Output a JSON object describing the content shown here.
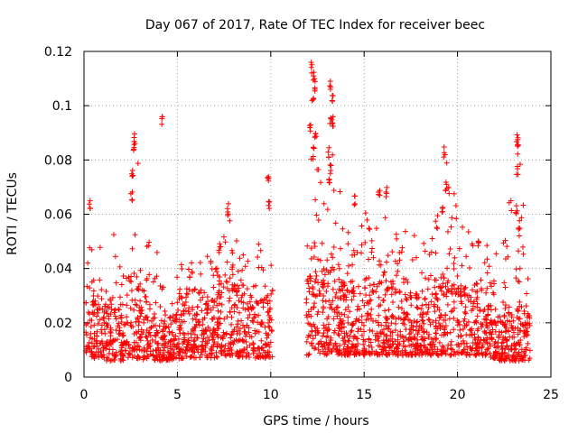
{
  "chart_data": {
    "type": "scatter",
    "title": "Day 067 of 2017, Rate Of TEC Index for receiver beec",
    "xlabel": "GPS time / hours",
    "ylabel": "ROTI / TECUs",
    "xlim": [
      0,
      25
    ],
    "ylim": [
      0,
      0.12
    ],
    "xticks": [
      0,
      5,
      10,
      15,
      20,
      25
    ],
    "yticks": [
      0,
      0.02,
      0.04,
      0.06,
      0.08,
      0.1,
      0.12
    ],
    "xtick_labels": [
      "0",
      "5",
      "10",
      "15",
      "20",
      "25"
    ],
    "ytick_labels": [
      "0",
      "0.02",
      "0.04",
      "0.06",
      "0.08",
      "0.1",
      "0.12"
    ],
    "grid": true,
    "marker": "+",
    "color": "#ff0000",
    "gaps": [
      [
        10.1,
        11.9
      ]
    ],
    "data_range": [
      0,
      23.9
    ],
    "envelope": [
      {
        "x": 0.0,
        "base": 0.008,
        "dense_top": 0.025,
        "sparse_top": 0.045
      },
      {
        "x": 0.5,
        "base": 0.007,
        "dense_top": 0.03,
        "sparse_top": 0.065
      },
      {
        "x": 1.0,
        "base": 0.006,
        "dense_top": 0.025,
        "sparse_top": 0.05
      },
      {
        "x": 2.0,
        "base": 0.006,
        "dense_top": 0.025,
        "sparse_top": 0.055
      },
      {
        "x": 2.7,
        "base": 0.007,
        "dense_top": 0.04,
        "sparse_top": 0.09
      },
      {
        "x": 3.5,
        "base": 0.006,
        "dense_top": 0.025,
        "sparse_top": 0.05
      },
      {
        "x": 4.2,
        "base": 0.006,
        "dense_top": 0.02,
        "sparse_top": 0.045
      },
      {
        "x": 5.5,
        "base": 0.007,
        "dense_top": 0.025,
        "sparse_top": 0.045
      },
      {
        "x": 7.0,
        "base": 0.007,
        "dense_top": 0.028,
        "sparse_top": 0.045
      },
      {
        "x": 7.7,
        "base": 0.008,
        "dense_top": 0.035,
        "sparse_top": 0.06
      },
      {
        "x": 9.0,
        "base": 0.007,
        "dense_top": 0.025,
        "sparse_top": 0.045
      },
      {
        "x": 9.9,
        "base": 0.007,
        "dense_top": 0.03,
        "sparse_top": 0.07
      },
      {
        "x": 12.0,
        "base": 0.008,
        "dense_top": 0.035,
        "sparse_top": 0.08
      },
      {
        "x": 12.3,
        "base": 0.01,
        "dense_top": 0.05,
        "sparse_top": 0.115
      },
      {
        "x": 12.8,
        "base": 0.008,
        "dense_top": 0.035,
        "sparse_top": 0.06
      },
      {
        "x": 13.3,
        "base": 0.008,
        "dense_top": 0.04,
        "sparse_top": 0.11
      },
      {
        "x": 14.0,
        "base": 0.008,
        "dense_top": 0.032,
        "sparse_top": 0.055
      },
      {
        "x": 15.0,
        "base": 0.008,
        "dense_top": 0.032,
        "sparse_top": 0.06
      },
      {
        "x": 16.0,
        "base": 0.008,
        "dense_top": 0.035,
        "sparse_top": 0.07
      },
      {
        "x": 17.0,
        "base": 0.008,
        "dense_top": 0.03,
        "sparse_top": 0.055
      },
      {
        "x": 18.5,
        "base": 0.008,
        "dense_top": 0.028,
        "sparse_top": 0.05
      },
      {
        "x": 19.4,
        "base": 0.008,
        "dense_top": 0.035,
        "sparse_top": 0.085
      },
      {
        "x": 20.5,
        "base": 0.008,
        "dense_top": 0.03,
        "sparse_top": 0.055
      },
      {
        "x": 21.5,
        "base": 0.008,
        "dense_top": 0.028,
        "sparse_top": 0.05
      },
      {
        "x": 22.3,
        "base": 0.006,
        "dense_top": 0.022,
        "sparse_top": 0.045
      },
      {
        "x": 23.2,
        "base": 0.006,
        "dense_top": 0.025,
        "sparse_top": 0.09
      },
      {
        "x": 23.9,
        "base": 0.006,
        "dense_top": 0.022,
        "sparse_top": 0.045
      }
    ],
    "peaks": [
      {
        "x": 0.3,
        "y": 0.066
      },
      {
        "x": 2.7,
        "y": 0.09
      },
      {
        "x": 2.65,
        "y": 0.086
      },
      {
        "x": 2.6,
        "y": 0.077
      },
      {
        "x": 2.55,
        "y": 0.069
      },
      {
        "x": 4.2,
        "y": 0.097
      },
      {
        "x": 7.7,
        "y": 0.064
      },
      {
        "x": 9.85,
        "y": 0.075
      },
      {
        "x": 9.9,
        "y": 0.065
      },
      {
        "x": 12.2,
        "y": 0.116
      },
      {
        "x": 12.3,
        "y": 0.113
      },
      {
        "x": 12.35,
        "y": 0.109
      },
      {
        "x": 12.25,
        "y": 0.104
      },
      {
        "x": 12.1,
        "y": 0.094
      },
      {
        "x": 12.4,
        "y": 0.092
      },
      {
        "x": 12.3,
        "y": 0.085
      },
      {
        "x": 13.2,
        "y": 0.11
      },
      {
        "x": 13.3,
        "y": 0.104
      },
      {
        "x": 13.25,
        "y": 0.097
      },
      {
        "x": 13.35,
        "y": 0.096
      },
      {
        "x": 13.1,
        "y": 0.085
      },
      {
        "x": 13.2,
        "y": 0.079
      },
      {
        "x": 13.15,
        "y": 0.074
      },
      {
        "x": 15.8,
        "y": 0.071
      },
      {
        "x": 16.2,
        "y": 0.07
      },
      {
        "x": 19.3,
        "y": 0.085
      },
      {
        "x": 19.4,
        "y": 0.072
      },
      {
        "x": 19.2,
        "y": 0.063
      },
      {
        "x": 23.2,
        "y": 0.09
      },
      {
        "x": 23.25,
        "y": 0.087
      },
      {
        "x": 23.2,
        "y": 0.078
      },
      {
        "x": 23.15,
        "y": 0.064
      },
      {
        "x": 23.3,
        "y": 0.058
      },
      {
        "x": 21.1,
        "y": 0.052
      },
      {
        "x": 14.5,
        "y": 0.067
      }
    ]
  }
}
